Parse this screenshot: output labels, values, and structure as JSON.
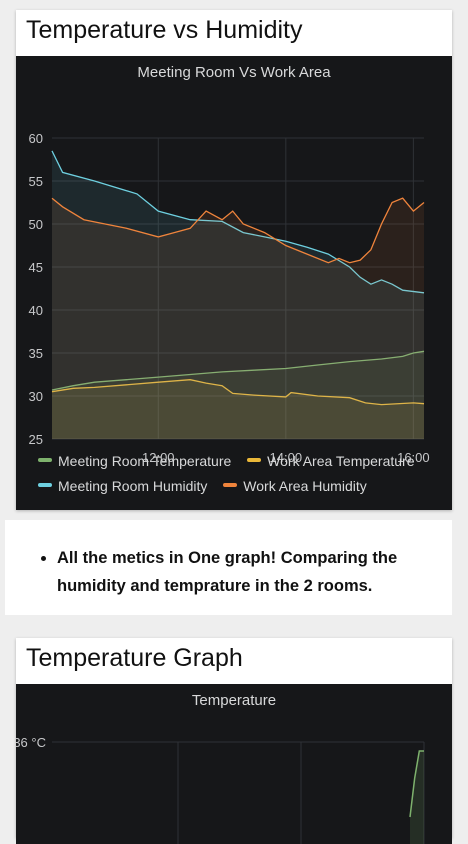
{
  "cards": [
    {
      "title": "Temperature vs Humidity"
    },
    {
      "title": "Temperature Graph"
    }
  ],
  "note": {
    "bullet": "All the metics in One graph! Comparing the humidity and temprature in the 2 rooms."
  },
  "chart_data": [
    {
      "type": "line",
      "title": "Meeting Room Vs Work Area",
      "x_range": [
        "10:20",
        "16:10"
      ],
      "x_ticks": [
        "12:00",
        "14:00",
        "16:00"
      ],
      "y_ticks": [
        "60",
        "55",
        "50",
        "45",
        "40",
        "35",
        "30",
        "25"
      ],
      "ylim": [
        25,
        60
      ],
      "grid": true,
      "legend_position": "bottom",
      "series": [
        {
          "name": "Meeting Room Temperature",
          "color": "#7eb26d",
          "points": [
            [
              "10:20",
              30.7
            ],
            [
              "10:40",
              31.2
            ],
            [
              "11:00",
              31.6
            ],
            [
              "11:30",
              31.9
            ],
            [
              "12:00",
              32.2
            ],
            [
              "12:30",
              32.5
            ],
            [
              "13:00",
              32.8
            ],
            [
              "13:30",
              33.0
            ],
            [
              "14:00",
              33.2
            ],
            [
              "14:30",
              33.6
            ],
            [
              "15:00",
              34.0
            ],
            [
              "15:30",
              34.3
            ],
            [
              "15:50",
              34.6
            ],
            [
              "16:00",
              35.0
            ],
            [
              "16:10",
              35.2
            ]
          ]
        },
        {
          "name": "Work Area Temperature",
          "color": "#eab839",
          "points": [
            [
              "10:20",
              30.5
            ],
            [
              "10:40",
              30.9
            ],
            [
              "11:00",
              31.0
            ],
            [
              "11:30",
              31.3
            ],
            [
              "12:00",
              31.6
            ],
            [
              "12:30",
              31.9
            ],
            [
              "12:45",
              31.5
            ],
            [
              "13:00",
              31.2
            ],
            [
              "13:10",
              30.3
            ],
            [
              "13:30",
              30.1
            ],
            [
              "14:00",
              29.9
            ],
            [
              "14:05",
              30.4
            ],
            [
              "14:30",
              30.0
            ],
            [
              "15:00",
              29.8
            ],
            [
              "15:15",
              29.2
            ],
            [
              "15:30",
              29.0
            ],
            [
              "16:00",
              29.2
            ],
            [
              "16:10",
              29.1
            ]
          ]
        },
        {
          "name": "Meeting Room Humidity",
          "color": "#6ed0e0",
          "points": [
            [
              "10:20",
              58.5
            ],
            [
              "10:30",
              56.0
            ],
            [
              "11:00",
              55.0
            ],
            [
              "11:40",
              53.5
            ],
            [
              "12:00",
              51.5
            ],
            [
              "12:30",
              50.5
            ],
            [
              "13:00",
              50.3
            ],
            [
              "13:20",
              49.0
            ],
            [
              "13:40",
              48.5
            ],
            [
              "14:00",
              48.0
            ],
            [
              "14:20",
              47.3
            ],
            [
              "14:40",
              46.5
            ],
            [
              "15:00",
              45.0
            ],
            [
              "15:10",
              43.8
            ],
            [
              "15:20",
              43.0
            ],
            [
              "15:30",
              43.5
            ],
            [
              "15:40",
              43.0
            ],
            [
              "15:50",
              42.3
            ],
            [
              "16:10",
              42.0
            ]
          ]
        },
        {
          "name": "Work Area Humidity",
          "color": "#ef843c",
          "points": [
            [
              "10:20",
              53.0
            ],
            [
              "10:30",
              52.0
            ],
            [
              "10:50",
              50.5
            ],
            [
              "11:10",
              50.0
            ],
            [
              "11:30",
              49.5
            ],
            [
              "12:00",
              48.5
            ],
            [
              "12:15",
              49.0
            ],
            [
              "12:30",
              49.5
            ],
            [
              "12:45",
              51.5
            ],
            [
              "13:00",
              50.5
            ],
            [
              "13:10",
              51.5
            ],
            [
              "13:20",
              50.0
            ],
            [
              "13:40",
              49.0
            ],
            [
              "14:00",
              47.5
            ],
            [
              "14:20",
              46.5
            ],
            [
              "14:40",
              45.5
            ],
            [
              "14:50",
              46.0
            ],
            [
              "15:00",
              45.5
            ],
            [
              "15:10",
              45.8
            ],
            [
              "15:20",
              47.0
            ],
            [
              "15:30",
              50.0
            ],
            [
              "15:40",
              52.5
            ],
            [
              "15:50",
              53.0
            ],
            [
              "16:00",
              51.5
            ],
            [
              "16:10",
              52.5
            ]
          ]
        }
      ]
    },
    {
      "type": "line",
      "title": "Temperature",
      "y_ticks": [
        "36 °C"
      ],
      "grid": true,
      "series": [
        {
          "color": "#7eb26d",
          "points": [
            [
              "15:55",
              33.5
            ],
            [
              "16:00",
              34.8
            ],
            [
              "16:05",
              35.7
            ],
            [
              "16:10",
              35.7
            ]
          ]
        }
      ]
    }
  ]
}
